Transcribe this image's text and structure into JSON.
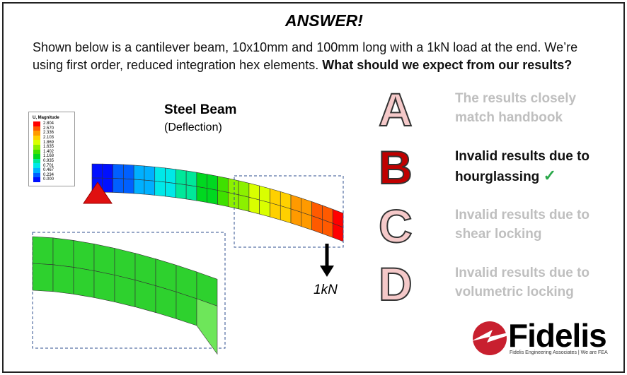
{
  "title": "ANSWER!",
  "intro": {
    "text": "Shown below is a cantilever beam, 10x10mm and 100mm long with a 1kN load at the end. We’re using first order, reduced integration hex elements. ",
    "question": "What should we expect from our results?"
  },
  "figure": {
    "title": "Steel Beam",
    "subtitle": "(Deflection)",
    "load_label": "1kN",
    "legend": {
      "title": "U, Magnitude",
      "values": [
        "2.804",
        "2.570",
        "2.336",
        "2.103",
        "1.869",
        "1.635",
        "1.402",
        "1.168",
        "0.935",
        "0.701",
        "0.467",
        "0.234",
        "0.000"
      ],
      "colors": [
        "#ff0000",
        "#ff5a00",
        "#ff9a00",
        "#ffd000",
        "#d9ff00",
        "#8cf000",
        "#3fe000",
        "#00d820",
        "#00e89a",
        "#00e8e8",
        "#00b0ff",
        "#0060ff",
        "#0010ff"
      ]
    }
  },
  "options": [
    {
      "letter": "A",
      "text1": "The results closely",
      "text2": "match handbook",
      "selected": false
    },
    {
      "letter": "B",
      "text1": "Invalid results due to",
      "text2": "hourglassing",
      "selected": true,
      "mark": "✓"
    },
    {
      "letter": "C",
      "text1": "Invalid results due to",
      "text2": "shear locking",
      "selected": false
    },
    {
      "letter": "D",
      "text1": "Invalid results due to",
      "text2": "volumetric locking",
      "selected": false
    }
  ],
  "logo": {
    "name": "Fidelis",
    "tagline": "Fidelis Engineering Associates | We are FEA",
    "color": "#c8202f"
  }
}
